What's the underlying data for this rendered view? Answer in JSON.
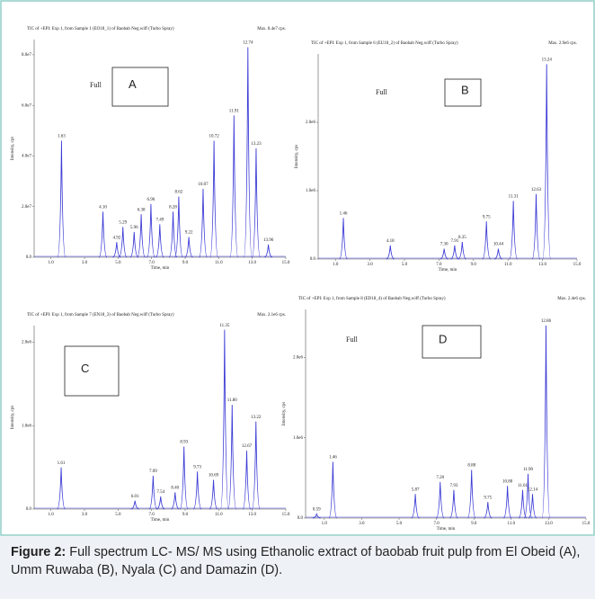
{
  "chart_data": [
    {
      "type": "spike",
      "header": "TIC of +EPI: Exp 1, from Sample 1 (EO18_1) of Baobab Neg.wiff (Turbo Spray)",
      "max_label": "Max. 8.4e7 cps.",
      "panel_label": "A",
      "note": "Full",
      "x_label": "Time, min",
      "y_label": "Intensity, cps",
      "color": "#3b3bd6",
      "xlim": [
        0,
        15
      ],
      "xticks": [
        {
          "value": 1,
          "label": "1.0"
        },
        {
          "value": 3,
          "label": "3.0"
        },
        {
          "value": 5,
          "label": "5.0"
        },
        {
          "value": 7,
          "label": "7.0"
        },
        {
          "value": 9,
          "label": "9.0"
        },
        {
          "value": 11,
          "label": "11.0"
        },
        {
          "value": 13,
          "label": "13.0"
        },
        {
          "value": 15,
          "label": "15.0"
        }
      ],
      "ylim": [
        0,
        86000000
      ],
      "yticks": [
        {
          "value": 0,
          "label": "0.0"
        },
        {
          "value": 20000000,
          "label": "2.0e7"
        },
        {
          "value": 40000000,
          "label": "4.0e7"
        },
        {
          "value": 60000000,
          "label": "6.0e7"
        },
        {
          "value": 80000000,
          "label": "8.0e7"
        }
      ],
      "x": [
        1.63,
        4.1,
        4.92,
        5.29,
        5.96,
        6.38,
        6.96,
        7.49,
        8.28,
        8.62,
        9.22,
        10.07,
        10.72,
        11.91,
        12.74,
        13.23,
        13.96
      ],
      "x_labels": [
        "1.63",
        "4.10",
        "4.92",
        "5.29",
        "5.96",
        "6.38",
        "6.96",
        "7.49",
        "8.28",
        "8.62",
        "9.22",
        "10.07",
        "10.72",
        "11.91",
        "12.74",
        "13.23",
        "13.96"
      ],
      "values": [
        46000000,
        18000000,
        6000000,
        12000000,
        10000000,
        17000000,
        21000000,
        13000000,
        18000000,
        24000000,
        8000000,
        27000000,
        46000000,
        56000000,
        83000000,
        43000000,
        5000000
      ]
    },
    {
      "type": "spike",
      "header": "TIC of +EPI: Exp 1, from Sample 6 (EU18_2) of Baobab Neg.wiff (Turbo Spray)",
      "max_label": "Max. 2.9e6 cps.",
      "panel_label": "B",
      "note": "Full",
      "x_label": "Time, min",
      "y_label": "Intensity, cps",
      "color": "#3b3bd6",
      "xlim": [
        0,
        15
      ],
      "xticks": [
        {
          "value": 1,
          "label": "1.0"
        },
        {
          "value": 3,
          "label": "3.0"
        },
        {
          "value": 5,
          "label": "5.0"
        },
        {
          "value": 7,
          "label": "7.0"
        },
        {
          "value": 9,
          "label": "9.0"
        },
        {
          "value": 11,
          "label": "11.0"
        },
        {
          "value": 13,
          "label": "13.0"
        },
        {
          "value": 15,
          "label": "15.0"
        }
      ],
      "ylim": [
        0,
        3000000
      ],
      "yticks": [
        {
          "value": 0,
          "label": "0.0"
        },
        {
          "value": 1000000,
          "label": "1.0e6"
        },
        {
          "value": 2000000,
          "label": "2.0e6"
        }
      ],
      "x": [
        1.46,
        4.18,
        7.3,
        7.91,
        8.35,
        9.75,
        10.44,
        11.31,
        12.63,
        13.24
      ],
      "x_labels": [
        "1.46",
        "4.18",
        "7.30",
        "7.91",
        "8.35",
        "9.75",
        "10.44",
        "11.31",
        "12.63",
        "13.24"
      ],
      "values": [
        600000,
        200000,
        150000,
        200000,
        250000,
        550000,
        150000,
        850000,
        950000,
        2850000
      ]
    },
    {
      "type": "spike",
      "header": "TIC of +EPI: Exp 1, from Sample 7 (EN18_3) of Baobab Neg.wiff (Turbo Spray)",
      "max_label": "Max. 2.1e6 cps.",
      "panel_label": "C",
      "x_label": "Time, min",
      "y_label": "Intensity, cps",
      "color": "#3b3bd6",
      "xlim": [
        0,
        15
      ],
      "xticks": [
        {
          "value": 1,
          "label": "1.0"
        },
        {
          "value": 3,
          "label": "3.0"
        },
        {
          "value": 5,
          "label": "5.0"
        },
        {
          "value": 7,
          "label": "7.0"
        },
        {
          "value": 9,
          "label": "9.0"
        },
        {
          "value": 11,
          "label": "11.0"
        },
        {
          "value": 13,
          "label": "13.0"
        },
        {
          "value": 15,
          "label": "15.0"
        }
      ],
      "ylim": [
        0,
        2200000
      ],
      "yticks": [
        {
          "value": 0,
          "label": "0.0"
        },
        {
          "value": 1000000,
          "label": "1.0e6"
        },
        {
          "value": 2000000,
          "label": "2.0e6"
        }
      ],
      "x": [
        1.61,
        6.01,
        7.09,
        7.54,
        8.4,
        8.93,
        9.73,
        10.69,
        11.35,
        11.8,
        12.67,
        13.22
      ],
      "x_labels": [
        "1.61",
        "6.01",
        "7.09",
        "7.54",
        "8.40",
        "8.93",
        "9.73",
        "10.69",
        "11.35",
        "11.80",
        "12.67",
        "13.22"
      ],
      "values": [
        500000,
        100000,
        400000,
        150000,
        200000,
        750000,
        450000,
        350000,
        2150000,
        1250000,
        700000,
        1050000
      ]
    },
    {
      "type": "spike",
      "header": "TIC of +EPI: Exp 1, from Sample 8 (ED18_4) of Baobab Neg.wiff (Turbo Spray)",
      "max_label": "Max. 2.4e6 cps.",
      "panel_label": "D",
      "note": "Full",
      "x_label": "Time, min",
      "y_label": "Intensity, cps",
      "color": "#3b3bd6",
      "xlim": [
        0,
        15
      ],
      "xticks": [
        {
          "value": 1,
          "label": "1.0"
        },
        {
          "value": 3,
          "label": "3.0"
        },
        {
          "value": 5,
          "label": "5.0"
        },
        {
          "value": 7,
          "label": "7.0"
        },
        {
          "value": 9,
          "label": "9.0"
        },
        {
          "value": 11,
          "label": "11.0"
        },
        {
          "value": 13,
          "label": "13.0"
        },
        {
          "value": 15,
          "label": "15.0"
        }
      ],
      "ylim": [
        0,
        2600000
      ],
      "yticks": [
        {
          "value": 0,
          "label": "0.0"
        },
        {
          "value": 1000000,
          "label": "1.0e6"
        },
        {
          "value": 2000000,
          "label": "2.0e6"
        }
      ],
      "x": [
        0.59,
        1.46,
        5.87,
        7.2,
        7.93,
        8.88,
        9.75,
        10.8,
        11.61,
        11.9,
        12.14,
        12.86
      ],
      "x_labels": [
        "0.59",
        "1.46",
        "5.87",
        "7.20",
        "7.93",
        "8.88",
        "9.75",
        "10.80",
        "11.61",
        "11.90",
        "12.14",
        "12.86"
      ],
      "values": [
        50000,
        700000,
        300000,
        450000,
        350000,
        600000,
        200000,
        400000,
        350000,
        550000,
        300000,
        2400000
      ]
    }
  ],
  "caption": {
    "label": "Figure 2:",
    "text": "Full spectrum LC- MS/ MS using Ethanolic extract of baobab fruit pulp from El Obeid (A), Umm Ruwaba (B),  Nyala (C)  and   Damazin (D)."
  }
}
